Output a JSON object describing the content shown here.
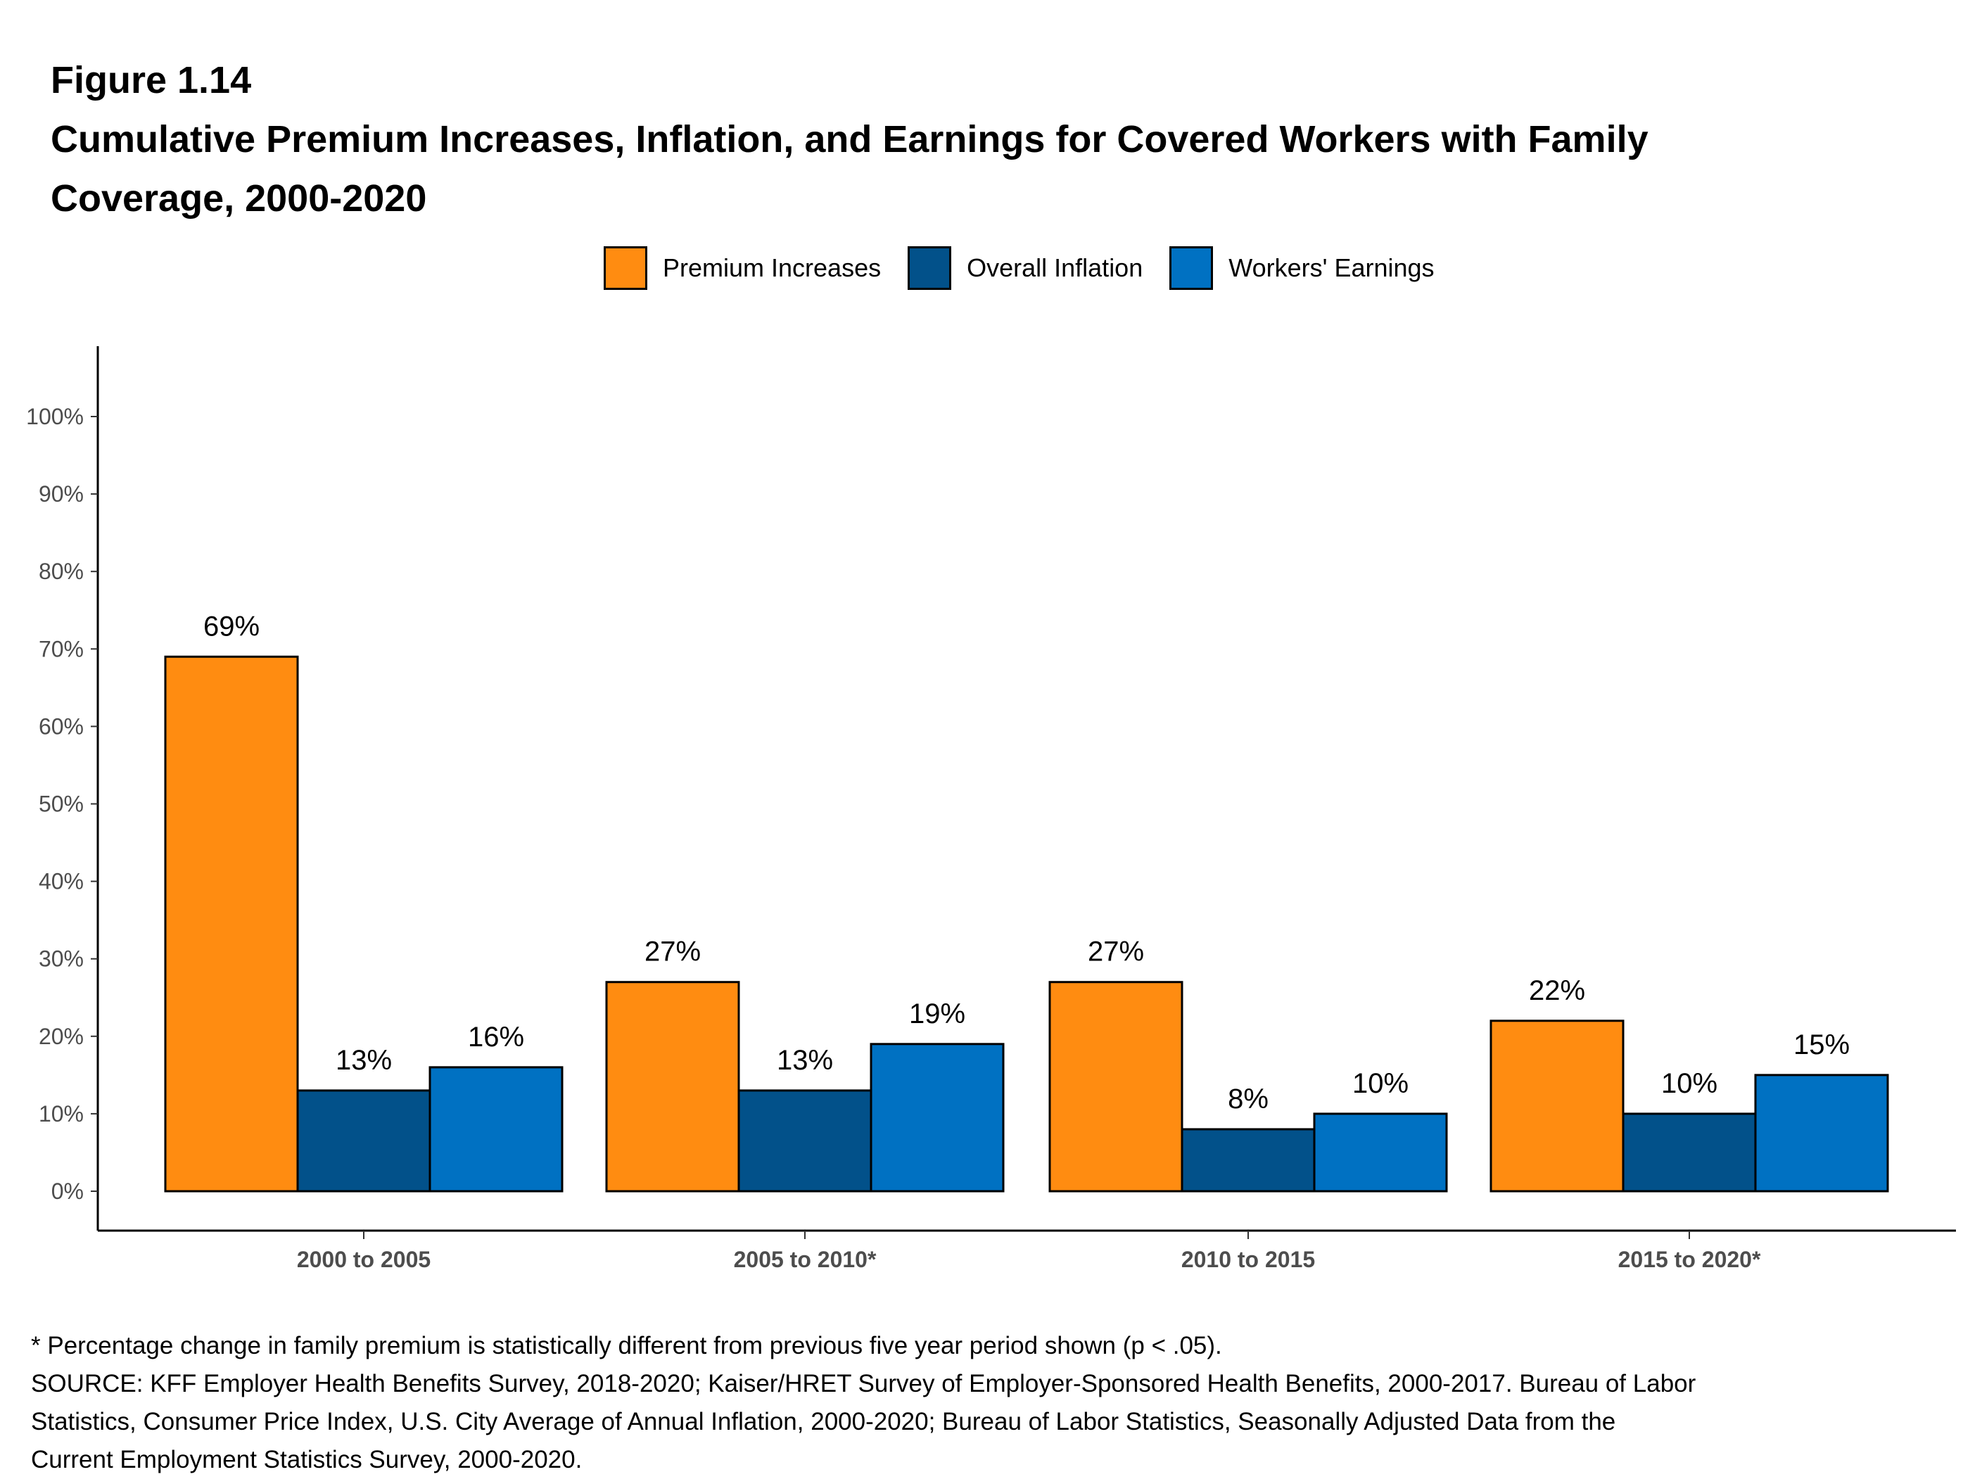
{
  "header": {
    "figure_label": "Figure 1.14",
    "title_line1": "Cumulative Premium Increases, Inflation, and Earnings for Covered Workers with Family",
    "title_line2": "Coverage, 2000-2020"
  },
  "chart_data": {
    "type": "bar",
    "title": "Cumulative Premium Increases, Inflation, and Earnings for Covered Workers with Family Coverage, 2000-2020",
    "categories": [
      "2000 to 2005",
      "2005 to 2010*",
      "2010 to 2015",
      "2015 to 2020*"
    ],
    "series": [
      {
        "name": "Premium Increases",
        "color": "#FF8C11",
        "values": [
          69,
          27,
          27,
          22
        ],
        "labels": [
          "69%",
          "27%",
          "27%",
          "22%"
        ]
      },
      {
        "name": "Overall Inflation",
        "color": "#02518A",
        "values": [
          13,
          13,
          8,
          10
        ],
        "labels": [
          "13%",
          "13%",
          "8%",
          "10%"
        ]
      },
      {
        "name": "Workers' Earnings",
        "color": "#0071C2",
        "values": [
          16,
          19,
          10,
          15
        ],
        "labels": [
          "16%",
          "19%",
          "10%",
          "15%"
        ]
      }
    ],
    "yticks": [
      "0%",
      "10%",
      "20%",
      "30%",
      "40%",
      "50%",
      "60%",
      "70%",
      "80%",
      "90%",
      "100%"
    ],
    "ylim": [
      0,
      100
    ],
    "xlabel": "",
    "ylabel": "",
    "grid": false,
    "legend_position": "top-center"
  },
  "footnotes": {
    "note": "* Percentage change in family premium is statistically different from previous five year period shown (p < .05).",
    "source_line1": "SOURCE: KFF Employer Health Benefits Survey, 2018-2020; Kaiser/HRET Survey of Employer-Sponsored Health Benefits, 2000-2017. Bureau of Labor",
    "source_line2": "Statistics, Consumer Price Index, U.S. City Average of Annual Inflation, 2000-2020; Bureau of Labor Statistics, Seasonally Adjusted Data from the",
    "source_line3": "Current Employment Statistics Survey, 2000-2020."
  }
}
